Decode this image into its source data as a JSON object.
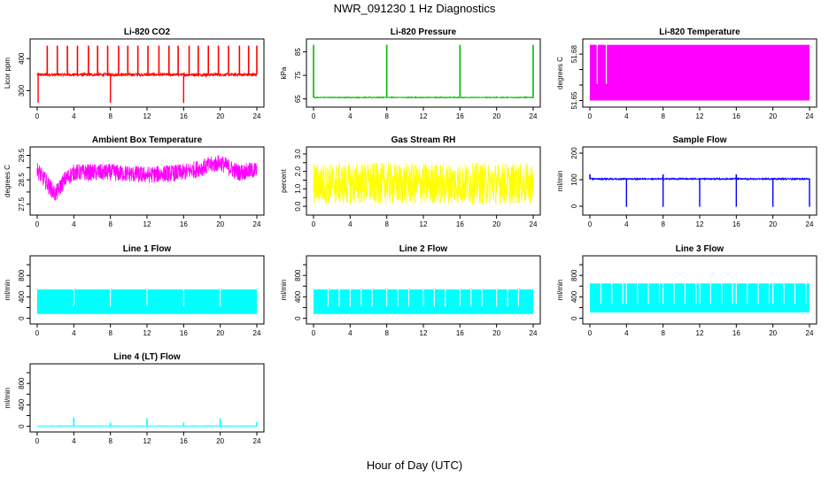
{
  "title": "NWR_091230  1 Hz Diagnostics",
  "x_axis_label": "Hour of Day (UTC)",
  "chart_data": [
    {
      "type": "line",
      "title": "Li-820 CO2",
      "ylabel": "Licor ppm",
      "color": "#ff0000",
      "xlim": [
        0,
        24
      ],
      "ylim": [
        260,
        450
      ],
      "xticks": [
        0,
        4,
        8,
        12,
        16,
        20,
        24
      ],
      "yticks": [
        300,
        400
      ],
      "baseline": 350,
      "noise": 5,
      "spikes_up": [
        1.1,
        2.2,
        3.3,
        4.4,
        5.6,
        6.6,
        7.7,
        8.9,
        9.9,
        11.0,
        12.1,
        13.3,
        14.4,
        15.4,
        16.6,
        17.6,
        18.7,
        19.8,
        20.9,
        22.1,
        23.1,
        24.0
      ],
      "spike_up_value": 440,
      "spikes_down": [
        0.1,
        8.0,
        16.0
      ],
      "spike_down_value": 262
    },
    {
      "type": "line",
      "title": "Li-820 Pressure",
      "ylabel": "kPa",
      "color": "#00bb00",
      "xlim": [
        0,
        24
      ],
      "ylim": [
        63,
        89
      ],
      "xticks": [
        0,
        4,
        8,
        12,
        16,
        20,
        24
      ],
      "yticks": [
        65,
        75,
        85
      ],
      "baseline": 65.6,
      "noise": 0.15,
      "spikes_up": [
        0.0,
        8.0,
        16.0,
        24.0
      ],
      "spike_up_value": 88
    },
    {
      "type": "line",
      "title": "Li-820 Temperature",
      "ylabel": "degrees C",
      "color": "#ff00ff",
      "xlim": [
        0,
        24
      ],
      "ylim": [
        51.648,
        51.6875
      ],
      "xticks": [
        0,
        4,
        8,
        12,
        16,
        20,
        24
      ],
      "yticks": [
        51.65,
        51.66,
        51.67,
        51.68
      ],
      "ytick_labels": [
        "51.65",
        "",
        "",
        "51.68"
      ],
      "band": [
        51.65,
        51.686
      ],
      "band_x": [
        0,
        24
      ],
      "gaps": [
        0.8,
        1.8
      ]
    },
    {
      "type": "line",
      "title": "Ambient Box Temperature",
      "ylabel": "degrees C",
      "color": "#ff00ff",
      "xlim": [
        0,
        24
      ],
      "ylim": [
        27.2,
        29.7
      ],
      "xticks": [
        0,
        4,
        8,
        12,
        16,
        20,
        24
      ],
      "yticks": [
        27.5,
        28.0,
        28.5,
        29.0,
        29.5
      ],
      "ytick_labels": [
        "27.5",
        "",
        "28.5",
        "",
        "29.5"
      ],
      "series_profile": [
        [
          0,
          28.9
        ],
        [
          1,
          28.4
        ],
        [
          2,
          27.9
        ],
        [
          3,
          28.5
        ],
        [
          4,
          28.8
        ],
        [
          8,
          28.8
        ],
        [
          12,
          28.7
        ],
        [
          16,
          28.8
        ],
        [
          18,
          29.0
        ],
        [
          20,
          29.2
        ],
        [
          22,
          28.8
        ],
        [
          24,
          28.9
        ]
      ],
      "noise": 0.35
    },
    {
      "type": "line",
      "title": "Gas Stream RH",
      "ylabel": "percent",
      "color": "#ffff00",
      "xlim": [
        0,
        24
      ],
      "ylim": [
        -0.3,
        3.2
      ],
      "xticks": [
        0,
        4,
        8,
        12,
        16,
        20,
        24
      ],
      "yticks": [
        0.0,
        0.5,
        1.0,
        1.5,
        2.0,
        2.5,
        3.0
      ],
      "ytick_labels": [
        "0.0",
        "",
        "1.0",
        "",
        "2.0",
        "",
        "3.0"
      ],
      "baseline": 1.3,
      "noise": 1.2
    },
    {
      "type": "line",
      "title": "Sample Flow",
      "ylabel": "ml/min",
      "color": "#0000ff",
      "xlim": [
        0,
        24
      ],
      "ylim": [
        -20,
        210
      ],
      "xticks": [
        0,
        4,
        8,
        12,
        16,
        20,
        24
      ],
      "yticks": [
        0,
        100,
        200
      ],
      "baseline": 103,
      "noise": 3,
      "spikes_down": [
        4.0,
        8.0,
        12.0,
        16.0,
        20.0,
        24.0
      ],
      "spike_down_value": -2,
      "spikes_up": [
        0.0,
        8.0,
        16.0
      ],
      "spike_up_value": 120
    },
    {
      "type": "line",
      "title": "Line 1 Flow",
      "ylabel": "ml/min",
      "color": "#00ffff",
      "xlim": [
        0,
        24
      ],
      "ylim": [
        -40,
        1100
      ],
      "xticks": [
        0,
        4,
        8,
        12,
        16,
        20,
        24
      ],
      "yticks": [
        0,
        200,
        400,
        600,
        800,
        1000
      ],
      "ytick_labels": [
        "0",
        "",
        "400",
        "",
        "800",
        ""
      ],
      "band": [
        80,
        540
      ],
      "band_x": [
        0,
        24
      ],
      "gaps": [
        4.0,
        8.0,
        12.0,
        16.0,
        20.0
      ]
    },
    {
      "type": "line",
      "title": "Line 2 Flow",
      "ylabel": "ml/min",
      "color": "#00ffff",
      "xlim": [
        0,
        24
      ],
      "ylim": [
        -40,
        1100
      ],
      "xticks": [
        0,
        4,
        8,
        12,
        16,
        20,
        24
      ],
      "yticks": [
        0,
        200,
        400,
        600,
        800,
        1000
      ],
      "ytick_labels": [
        "0",
        "",
        "400",
        "",
        "800",
        ""
      ],
      "band": [
        80,
        540
      ],
      "band_x": [
        0,
        24
      ],
      "gaps": [
        1.6,
        2.8,
        4.0,
        5.2,
        6.4,
        8.0,
        9.2,
        10.4,
        12.0,
        13.2,
        14.4,
        16.0,
        17.2,
        18.4,
        20.0,
        21.2,
        22.4
      ]
    },
    {
      "type": "line",
      "title": "Line 3 Flow",
      "ylabel": "ml/min",
      "color": "#00ffff",
      "xlim": [
        0,
        24
      ],
      "ylim": [
        -40,
        1100
      ],
      "xticks": [
        0,
        4,
        8,
        12,
        16,
        20,
        24
      ],
      "yticks": [
        0,
        200,
        400,
        600,
        800,
        1000
      ],
      "ytick_labels": [
        "0",
        "",
        "400",
        "",
        "800",
        ""
      ],
      "band": [
        110,
        650
      ],
      "band_x": [
        0,
        24
      ],
      "gaps": [
        1.2,
        2.4,
        3.6,
        4.0,
        5.2,
        6.4,
        7.6,
        8.0,
        9.2,
        10.4,
        11.6,
        12.0,
        13.2,
        14.4,
        15.6,
        16.0,
        17.2,
        18.4,
        19.6,
        20.0,
        21.2,
        22.4,
        23.6
      ]
    },
    {
      "type": "line",
      "title": "Line 4 (LT) Flow",
      "ylabel": "ml/min",
      "color": "#00ffff",
      "xlim": [
        0,
        24
      ],
      "ylim": [
        -40,
        1100
      ],
      "xticks": [
        0,
        4,
        8,
        12,
        16,
        20,
        24
      ],
      "yticks": [
        0,
        200,
        400,
        600,
        800,
        1000
      ],
      "ytick_labels": [
        "0",
        "",
        "400",
        "",
        "800",
        ""
      ],
      "baseline": 5,
      "noise": 3,
      "spikes_up": [
        4.0,
        8.0,
        12.0,
        16.0,
        20.0,
        24.0
      ],
      "spike_up_values": [
        160,
        70,
        150,
        70,
        150,
        80
      ]
    }
  ]
}
